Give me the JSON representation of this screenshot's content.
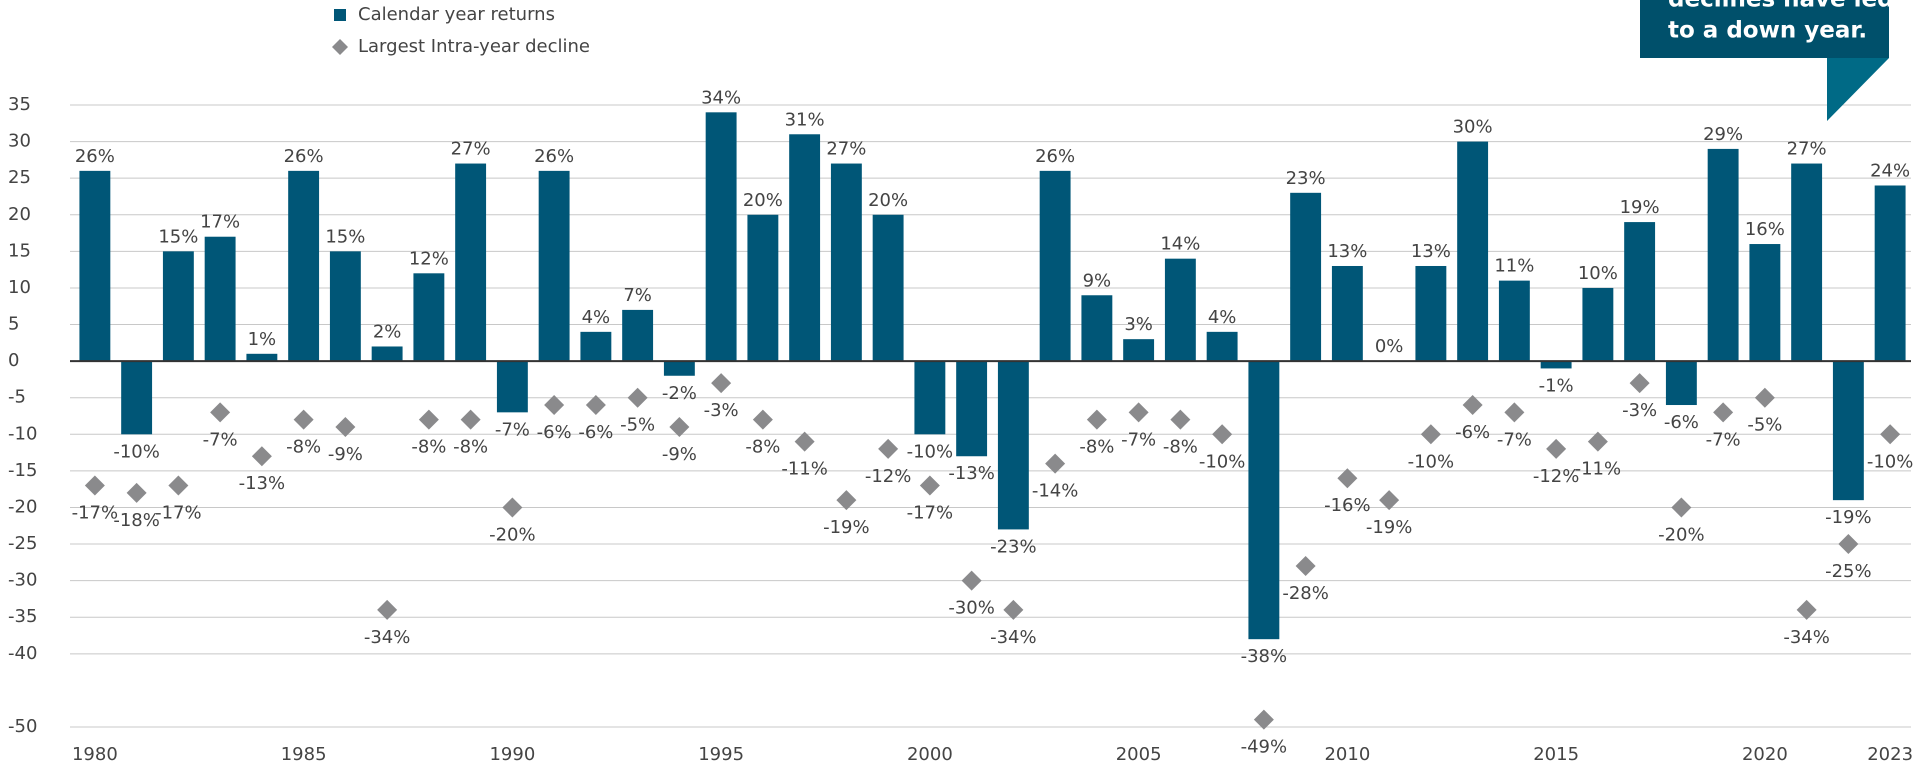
{
  "chart_data": {
    "type": "bar",
    "annotation": [
      "declines have led",
      "to a down year."
    ],
    "categories": [
      "1980",
      null,
      null,
      null,
      null,
      "1985",
      null,
      null,
      null,
      null,
      "1990",
      null,
      null,
      null,
      null,
      "1995",
      null,
      null,
      null,
      null,
      "2000",
      null,
      null,
      null,
      null,
      "2005",
      null,
      null,
      null,
      null,
      "2010",
      null,
      null,
      null,
      null,
      "2015",
      null,
      null,
      null,
      null,
      "2020",
      null,
      null,
      "2023"
    ],
    "series": [
      {
        "name": "Calendar year returns",
        "color": "#005677",
        "marker": "square",
        "values": [
          26,
          -10,
          15,
          17,
          1,
          26,
          15,
          2,
          12,
          27,
          -7,
          26,
          4,
          7,
          -2,
          34,
          20,
          31,
          27,
          20,
          -10,
          -13,
          -23,
          26,
          9,
          3,
          14,
          4,
          -38,
          23,
          13,
          0,
          13,
          30,
          11,
          -1,
          10,
          19,
          -6,
          29,
          16,
          27,
          -19,
          24
        ],
        "value_labels": [
          "26%",
          "-10%",
          "15%",
          "17%",
          "1%",
          "26%",
          "15%",
          "2%",
          "12%",
          "27%",
          "-7%",
          "26%",
          "4%",
          "7%",
          "-2%",
          "34%",
          "20%",
          "31%",
          "27%",
          "20%",
          "-10%",
          "-13%",
          "-23%",
          "26%",
          "9%",
          "3%",
          "14%",
          "4%",
          "-38%",
          "23%",
          "13%",
          "0%",
          "13%",
          "30%",
          "11%",
          "-1%",
          "10%",
          "19%",
          "-6%",
          "29%",
          "16%",
          "27%",
          "-19%",
          "24%"
        ]
      },
      {
        "name": "Largest Intra-year decline",
        "color": "#8a8a8c",
        "marker": "diamond",
        "values": [
          -17,
          -18,
          -17,
          -7,
          -13,
          -8,
          -9,
          -34,
          -8,
          -8,
          -20,
          -6,
          -6,
          -5,
          -9,
          -3,
          -8,
          -11,
          -19,
          -12,
          -17,
          -30,
          -34,
          -14,
          -8,
          -7,
          -8,
          -10,
          -49,
          -28,
          -16,
          -19,
          -10,
          -6,
          -7,
          -12,
          -11,
          -3,
          -20,
          -7,
          -5,
          -34,
          -25,
          -10
        ],
        "value_labels": [
          "-17%",
          "-18%",
          "-17%",
          "-7%",
          "-13%",
          "-8%",
          "-9%",
          "-34%",
          "-8%",
          "-8%",
          "-20%",
          "-6%",
          "-6%",
          "-5%",
          "-9%",
          "-3%",
          "-8%",
          "-11%",
          "-19%",
          "-12%",
          "-17%",
          "-30%",
          "-34%",
          "-14%",
          "-8%",
          "-7%",
          "-8%",
          "-10%",
          "-49%",
          "-28%",
          "-16%",
          "-19%",
          "-10%",
          "-6%",
          "-7%",
          "-12%",
          "-11%",
          "-3%",
          "-20%",
          "-7%",
          "-5%",
          "-34%",
          "-25%",
          "-10%"
        ]
      }
    ],
    "ylim": [
      -50,
      35
    ],
    "yticks": [
      35,
      30,
      25,
      20,
      15,
      10,
      5,
      0,
      -5,
      -10,
      -15,
      -20,
      -25,
      -30,
      -35,
      -40,
      -50
    ],
    "grid": true
  }
}
